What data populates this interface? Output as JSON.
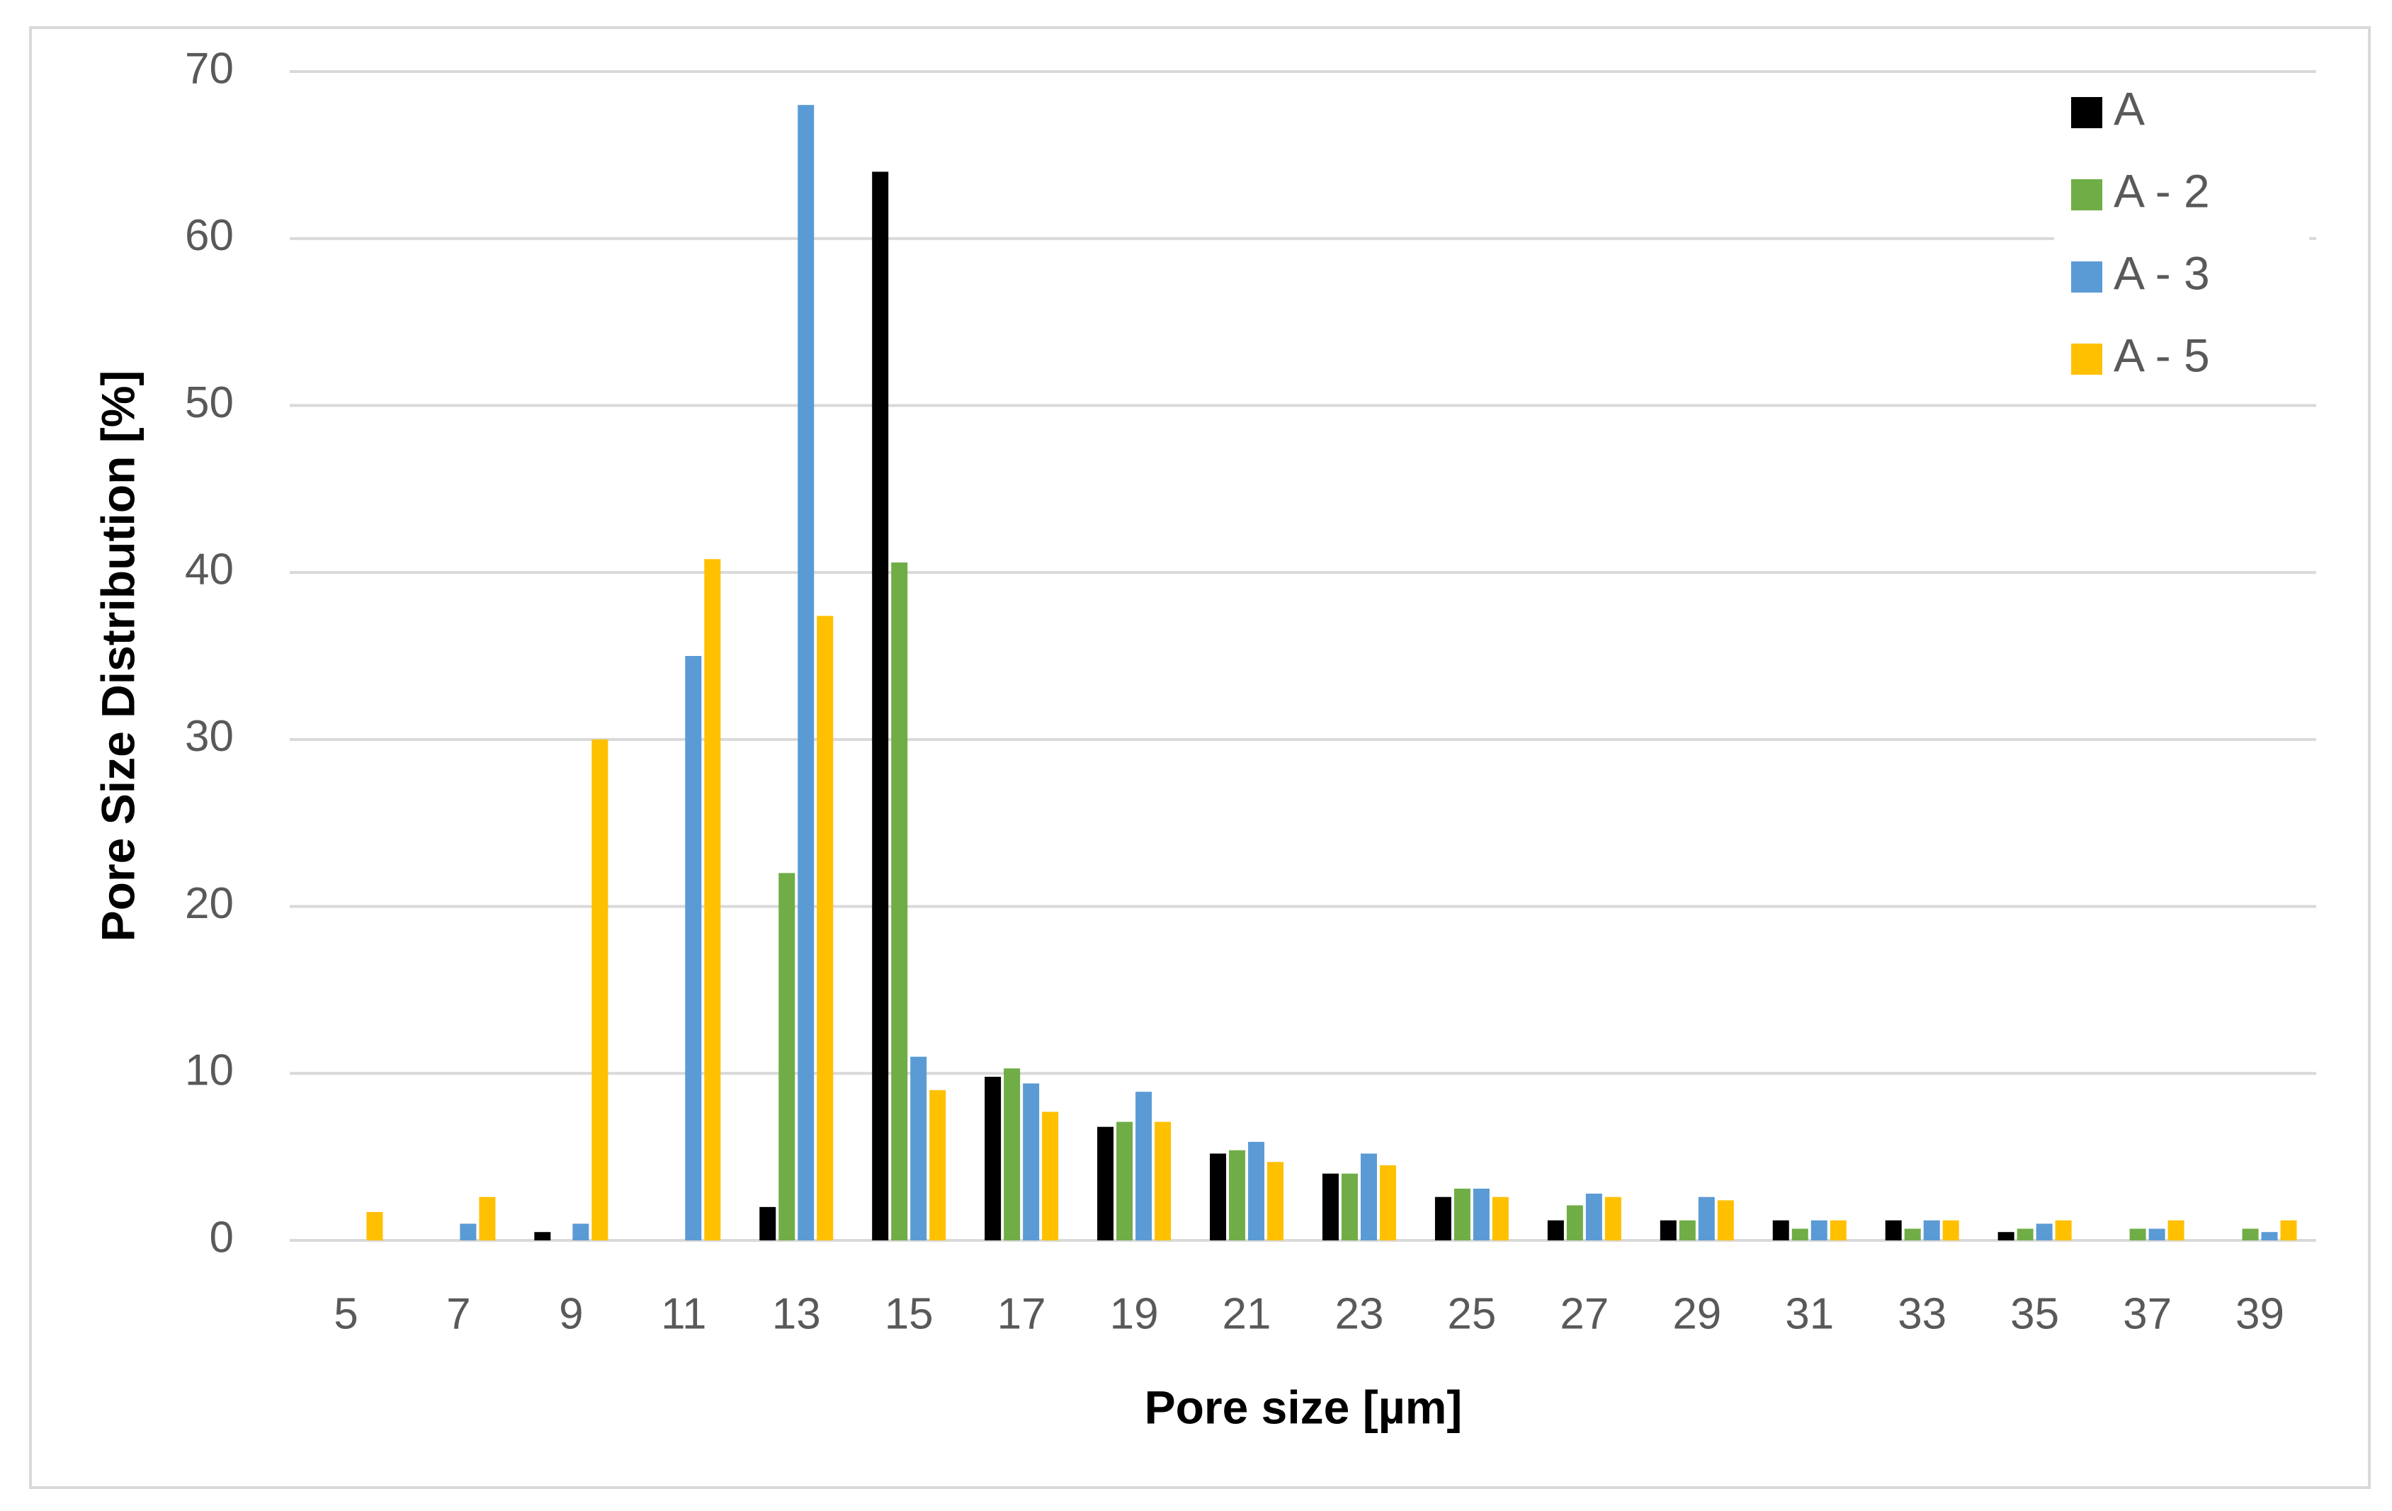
{
  "chart_data": {
    "type": "bar",
    "x_label": "Pore size [µm]",
    "y_label": "Pore Size Distribution [%]",
    "categories": [
      "5",
      "7",
      "9",
      "11",
      "13",
      "15",
      "17",
      "19",
      "21",
      "23",
      "25",
      "27",
      "29",
      "31",
      "33",
      "35",
      "37",
      "39"
    ],
    "series": [
      {
        "name": "A",
        "color": "#000000",
        "values": [
          0,
          0,
          0.5,
          0,
          2,
          64,
          9.8,
          6.8,
          5.2,
          4,
          2.6,
          1.2,
          1.2,
          1.2,
          1.2,
          0.5,
          0,
          0
        ]
      },
      {
        "name": "A - 2",
        "color": "#70ad47",
        "values": [
          0,
          0,
          0,
          0,
          22,
          40.6,
          10.3,
          7.1,
          5.4,
          4,
          3.1,
          2.1,
          1.2,
          0.7,
          0.7,
          0.7,
          0.7,
          0.7
        ]
      },
      {
        "name": "A - 3",
        "color": "#5b9bd5",
        "values": [
          0,
          1,
          1,
          35,
          68,
          11,
          9.4,
          8.9,
          5.9,
          5.2,
          3.1,
          2.8,
          2.6,
          1.2,
          1.2,
          1,
          0.7,
          0.5
        ]
      },
      {
        "name": "A - 5",
        "color": "#ffc000",
        "values": [
          1.7,
          2.6,
          30,
          40.8,
          37.4,
          9,
          7.7,
          7.1,
          4.7,
          4.5,
          2.6,
          2.6,
          2.4,
          1.2,
          1.2,
          1.2,
          1.2,
          1.2
        ]
      }
    ],
    "ylim": [
      0,
      70
    ],
    "yticks": [
      0,
      10,
      20,
      30,
      40,
      50,
      60,
      70
    ],
    "grid": true,
    "legend": "upper right"
  }
}
